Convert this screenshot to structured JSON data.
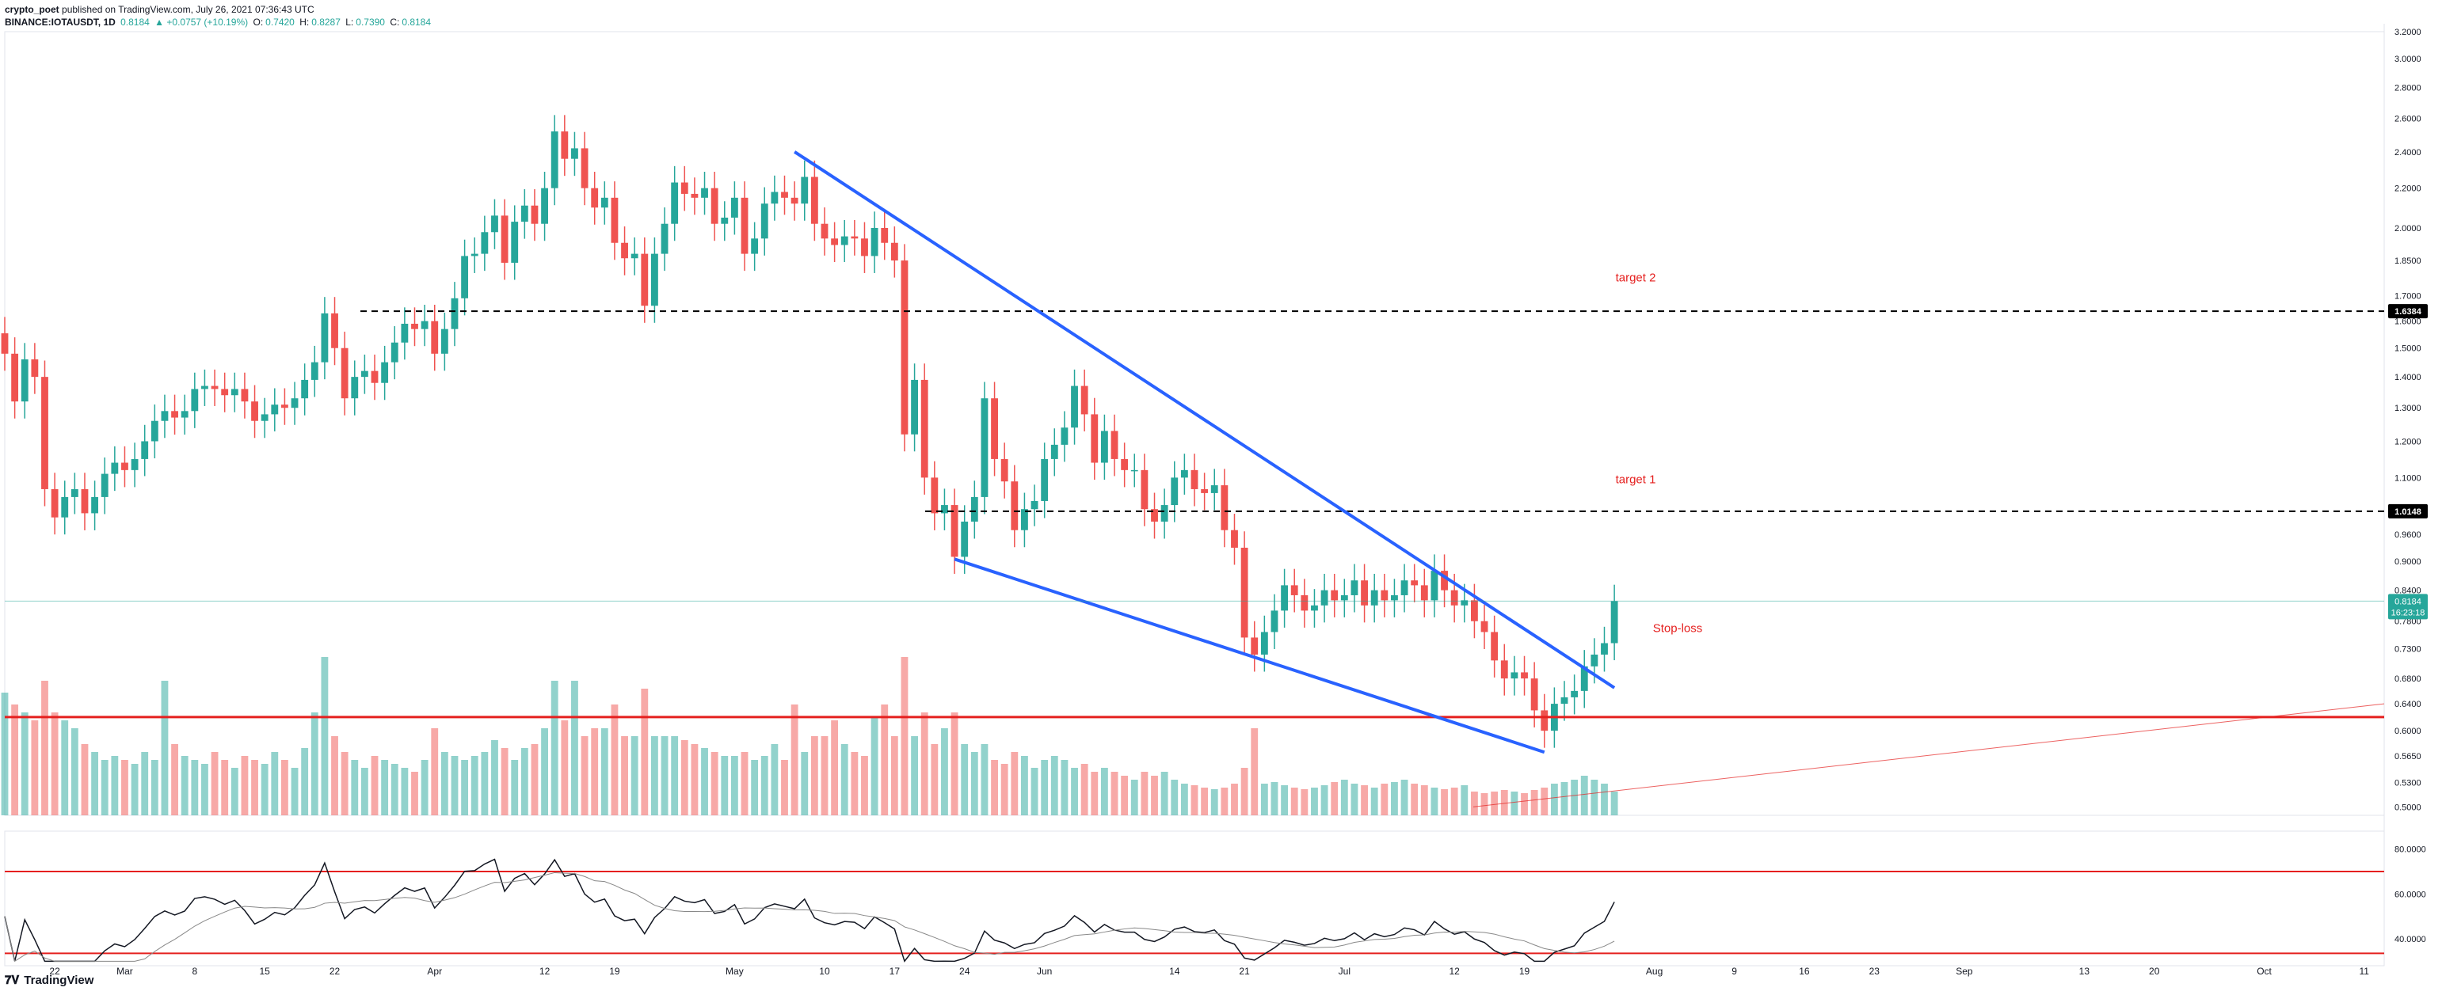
{
  "header": {
    "publisher": "crypto_poet",
    "published_text": "published on TradingView.com, July 26, 2021 07:36:43 UTC",
    "symbol": "BINANCE:IOTAUSDT, 1D",
    "last": "0.8184",
    "change": "▲ +0.0757 (+10.19%)",
    "o_label": "O:",
    "o": "0.7420",
    "h_label": "H:",
    "h": "0.8287",
    "l_label": "L:",
    "l": "0.7390",
    "c_label": "C:",
    "c": "0.8184"
  },
  "brand": {
    "logo_icon": "tradingview-logo-icon",
    "text": "TradingView"
  },
  "colors": {
    "up": "#26a69a",
    "down": "#ef5350",
    "trendline": "#2962ff",
    "level": "#000000",
    "support": "#e5201f",
    "annotation": "#e5201f",
    "osc": "#131722"
  },
  "chart_data": {
    "type": "candlestick",
    "symbol": "IOTAUSDT",
    "interval": "1D",
    "y_scale": "log",
    "ylim": [
      0.49,
      3.2
    ],
    "x_start": "2021-02-17",
    "x_end": "2021-10-13",
    "price_ticks": [
      "3.2000",
      "3.0000",
      "2.8000",
      "2.6000",
      "2.4000",
      "2.2000",
      "2.0000",
      "1.8500",
      "1.7000",
      "1.6000",
      "1.5000",
      "1.4000",
      "1.3000",
      "1.2000",
      "1.1000",
      "0.9600",
      "0.9000",
      "0.8400",
      "0.7800",
      "0.7300",
      "0.6800",
      "0.6400",
      "0.6000",
      "0.5650",
      "0.5300",
      "0.5000"
    ],
    "x_ticks": [
      {
        "date": "2021-02-22",
        "label": "22"
      },
      {
        "date": "2021-03-01",
        "label": "Mar"
      },
      {
        "date": "2021-03-08",
        "label": "8"
      },
      {
        "date": "2021-03-15",
        "label": "15"
      },
      {
        "date": "2021-03-22",
        "label": "22"
      },
      {
        "date": "2021-04-01",
        "label": "Apr"
      },
      {
        "date": "2021-04-12",
        "label": "12"
      },
      {
        "date": "2021-04-19",
        "label": "19"
      },
      {
        "date": "2021-05-01",
        "label": "May"
      },
      {
        "date": "2021-05-10",
        "label": "10"
      },
      {
        "date": "2021-05-17",
        "label": "17"
      },
      {
        "date": "2021-05-24",
        "label": "24"
      },
      {
        "date": "2021-06-01",
        "label": "Jun"
      },
      {
        "date": "2021-06-14",
        "label": "14"
      },
      {
        "date": "2021-06-21",
        "label": "21"
      },
      {
        "date": "2021-07-01",
        "label": "Jul"
      },
      {
        "date": "2021-07-12",
        "label": "12"
      },
      {
        "date": "2021-07-19",
        "label": "19"
      },
      {
        "date": "2021-08-01",
        "label": "Aug"
      },
      {
        "date": "2021-08-09",
        "label": "9"
      },
      {
        "date": "2021-08-16",
        "label": "16"
      },
      {
        "date": "2021-08-23",
        "label": "23"
      },
      {
        "date": "2021-09-01",
        "label": "Sep"
      },
      {
        "date": "2021-09-13",
        "label": "13"
      },
      {
        "date": "2021-09-20",
        "label": "20"
      },
      {
        "date": "2021-10-01",
        "label": "Oct"
      },
      {
        "date": "2021-10-11",
        "label": "11"
      }
    ],
    "start_date": "2021-02-17",
    "closes": [
      1.48,
      1.32,
      1.46,
      1.4,
      1.07,
      1.0,
      1.05,
      1.07,
      1.01,
      1.05,
      1.11,
      1.14,
      1.12,
      1.15,
      1.2,
      1.26,
      1.29,
      1.27,
      1.29,
      1.36,
      1.37,
      1.36,
      1.34,
      1.36,
      1.32,
      1.26,
      1.28,
      1.31,
      1.3,
      1.33,
      1.39,
      1.45,
      1.63,
      1.5,
      1.33,
      1.4,
      1.42,
      1.38,
      1.45,
      1.52,
      1.59,
      1.57,
      1.6,
      1.48,
      1.57,
      1.69,
      1.87,
      1.88,
      1.98,
      2.06,
      1.84,
      2.03,
      2.11,
      2.02,
      2.2,
      2.52,
      2.36,
      2.42,
      2.2,
      2.1,
      2.15,
      1.93,
      1.86,
      1.88,
      1.66,
      1.88,
      2.02,
      2.23,
      2.17,
      2.15,
      2.2,
      2.02,
      2.05,
      2.15,
      1.88,
      1.95,
      2.12,
      2.18,
      2.15,
      2.12,
      2.26,
      2.02,
      1.95,
      1.92,
      1.96,
      1.95,
      1.87,
      2.0,
      1.93,
      1.85,
      1.22,
      1.39,
      1.1,
      1.01,
      1.03,
      0.91,
      0.99,
      1.05,
      1.33,
      1.15,
      1.09,
      0.97,
      1.02,
      1.04,
      1.15,
      1.19,
      1.24,
      1.37,
      1.28,
      1.14,
      1.23,
      1.15,
      1.12,
      1.12,
      1.02,
      0.99,
      1.03,
      1.1,
      1.12,
      1.07,
      1.06,
      1.08,
      0.97,
      0.93,
      0.75,
      0.72,
      0.76,
      0.8,
      0.85,
      0.83,
      0.8,
      0.81,
      0.84,
      0.82,
      0.83,
      0.86,
      0.81,
      0.84,
      0.82,
      0.83,
      0.86,
      0.85,
      0.82,
      0.88,
      0.84,
      0.81,
      0.82,
      0.78,
      0.76,
      0.71,
      0.68,
      0.69,
      0.68,
      0.63,
      0.6,
      0.64,
      0.65,
      0.66,
      0.7,
      0.72,
      0.74,
      0.8184
    ],
    "volume_max": 2.5,
    "volumes": [
      1.55,
      1.4,
      1.3,
      1.2,
      1.7,
      1.3,
      1.2,
      1.1,
      0.9,
      0.8,
      0.7,
      0.75,
      0.7,
      0.65,
      0.8,
      0.7,
      1.7,
      0.9,
      0.75,
      0.7,
      0.65,
      0.8,
      0.7,
      0.6,
      0.75,
      0.7,
      0.65,
      0.8,
      0.7,
      0.6,
      0.85,
      1.3,
      2.0,
      1.0,
      0.8,
      0.7,
      0.6,
      0.75,
      0.7,
      0.65,
      0.6,
      0.55,
      0.7,
      1.1,
      0.8,
      0.75,
      0.7,
      0.75,
      0.8,
      0.95,
      0.85,
      0.7,
      0.85,
      0.9,
      1.1,
      1.7,
      1.2,
      1.7,
      1.0,
      1.1,
      1.1,
      1.4,
      1.0,
      1.0,
      1.6,
      1.0,
      1.0,
      1.0,
      0.95,
      0.9,
      0.85,
      0.8,
      0.75,
      0.75,
      0.8,
      0.7,
      0.75,
      0.9,
      0.7,
      1.4,
      0.8,
      1.0,
      1.0,
      1.2,
      0.9,
      0.8,
      0.75,
      1.25,
      1.4,
      1.0,
      2.0,
      1.0,
      1.3,
      0.9,
      1.1,
      1.3,
      0.9,
      0.8,
      0.9,
      0.7,
      0.65,
      0.8,
      0.75,
      0.6,
      0.7,
      0.75,
      0.7,
      0.6,
      0.65,
      0.55,
      0.6,
      0.55,
      0.5,
      0.45,
      0.55,
      0.5,
      0.55,
      0.45,
      0.4,
      0.38,
      0.35,
      0.33,
      0.35,
      0.4,
      0.6,
      1.1,
      0.4,
      0.42,
      0.38,
      0.35,
      0.33,
      0.35,
      0.38,
      0.42,
      0.45,
      0.4,
      0.38,
      0.35,
      0.4,
      0.42,
      0.45,
      0.4,
      0.38,
      0.35,
      0.33,
      0.35,
      0.38,
      0.3,
      0.28,
      0.3,
      0.32,
      0.3,
      0.28,
      0.32,
      0.35,
      0.4,
      0.42,
      0.45,
      0.5,
      0.45,
      0.4,
      0.3
    ],
    "oscillator": {
      "upper": 70,
      "lower": 33.5,
      "ticks": [
        "80.0000",
        "60.0000",
        "40.0000"
      ],
      "range": [
        28,
        88
      ]
    },
    "levels": [
      {
        "value": 1.6384,
        "label": "1.6384"
      },
      {
        "value": 1.0148,
        "label": "1.0148"
      }
    ],
    "last_price": {
      "value": "0.8184",
      "countdown": "16:23:18"
    },
    "annotations": {
      "target2": "target 2",
      "target1": "target 1",
      "stoploss": "Stop-loss"
    }
  }
}
